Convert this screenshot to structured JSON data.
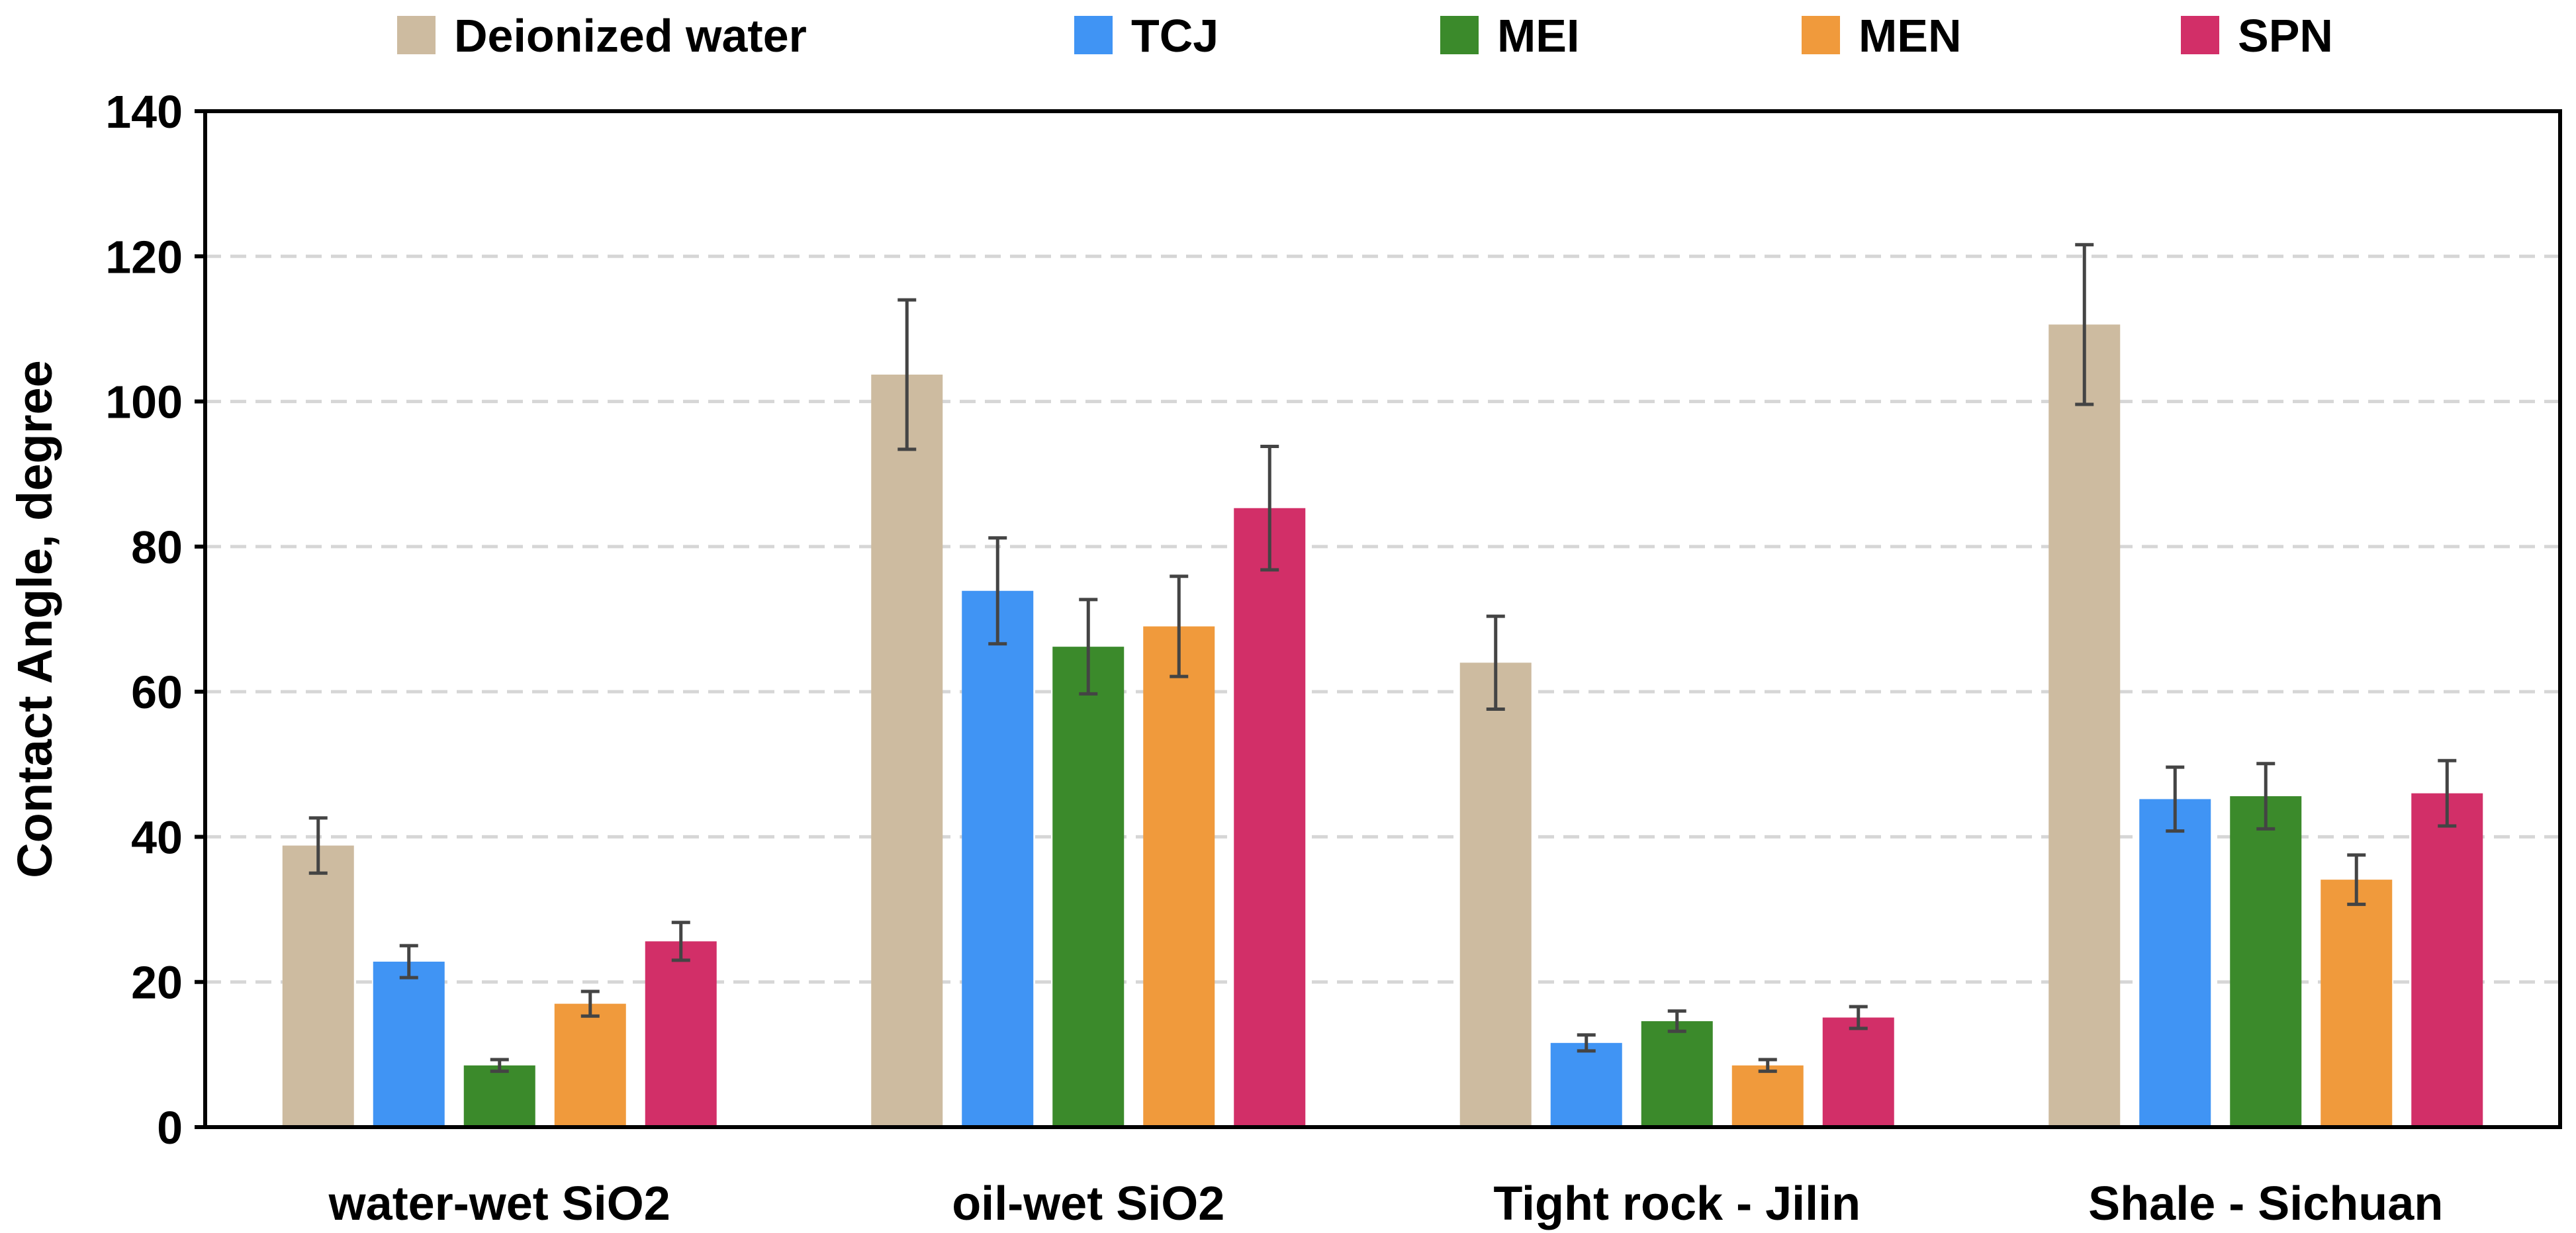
{
  "chart_data": {
    "type": "bar",
    "title": "",
    "xlabel": "",
    "ylabel": "Contact Angle, degree",
    "ylim": [
      0,
      140
    ],
    "yticks": [
      0,
      20,
      40,
      60,
      80,
      100,
      120,
      140
    ],
    "grid": true,
    "legend_position": "top",
    "categories": [
      "water-wet SiO2",
      "oil-wet SiO2",
      "Tight rock - Jilin",
      "Shale - Sichuan"
    ],
    "series": [
      {
        "name": "Deionized water",
        "color": "#cdbba0",
        "values": [
          38.8,
          103.7,
          64.0,
          110.6
        ],
        "errors": [
          3.8,
          10.3,
          6.4,
          11.0
        ]
      },
      {
        "name": "TCJ",
        "color": "#4094f4",
        "values": [
          22.8,
          73.9,
          11.6,
          45.2
        ],
        "errors": [
          2.2,
          7.3,
          1.1,
          4.4
        ]
      },
      {
        "name": "MEI",
        "color": "#3b8a2b",
        "values": [
          8.5,
          66.2,
          14.6,
          45.6
        ],
        "errors": [
          0.8,
          6.5,
          1.4,
          4.5
        ]
      },
      {
        "name": "MEN",
        "color": "#f09a3c",
        "values": [
          17.0,
          69.0,
          8.5,
          34.1
        ],
        "errors": [
          1.7,
          6.9,
          0.8,
          3.4
        ]
      },
      {
        "name": "SPN",
        "color": "#d22f68",
        "values": [
          25.6,
          85.3,
          15.1,
          46.0
        ],
        "errors": [
          2.6,
          8.5,
          1.5,
          4.5
        ]
      }
    ]
  }
}
